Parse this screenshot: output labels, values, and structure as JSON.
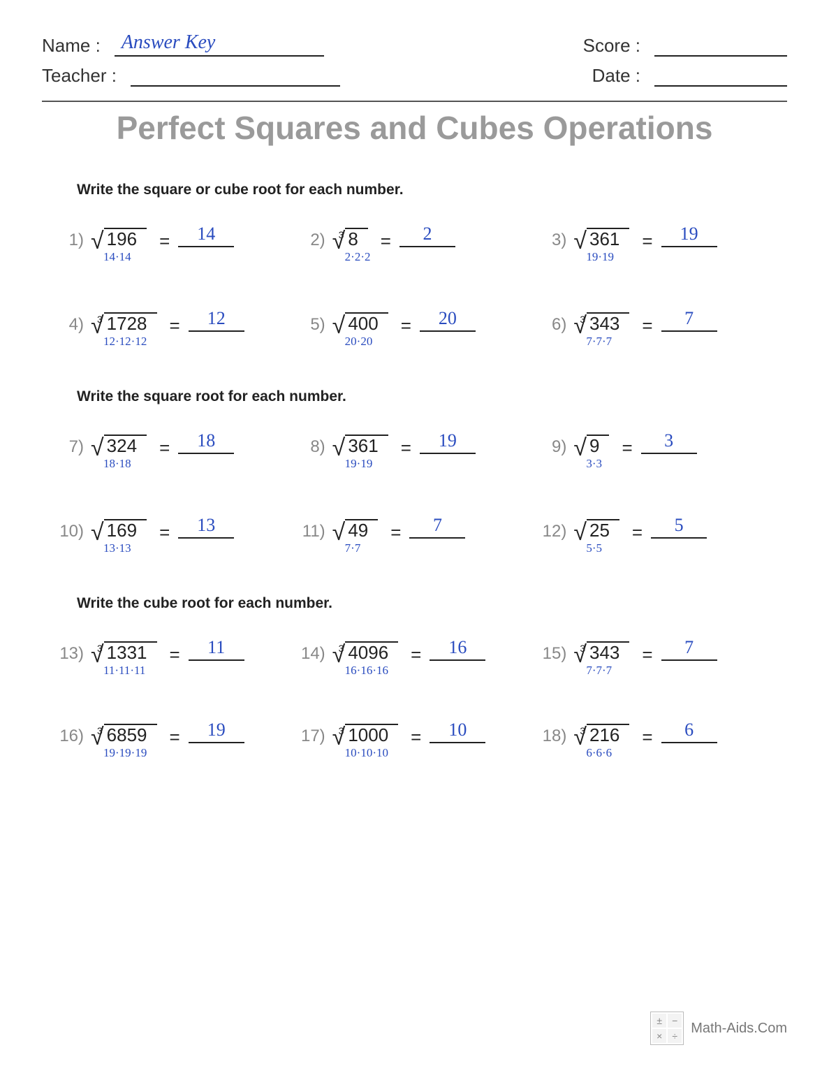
{
  "header": {
    "name_label": "Name :",
    "name_value": "Answer Key",
    "score_label": "Score :",
    "score_value": "",
    "teacher_label": "Teacher :",
    "teacher_value": "",
    "date_label": "Date :",
    "date_value": ""
  },
  "title": "Perfect Squares and Cubes Operations",
  "sections": [
    {
      "instruction": "Write the square or cube root for each number.",
      "problems": [
        {
          "num": "1)",
          "index": "",
          "radicand": "196",
          "work": "14·14",
          "answer": "14"
        },
        {
          "num": "2)",
          "index": "3",
          "radicand": "8",
          "work": "2·2·2",
          "answer": "2"
        },
        {
          "num": "3)",
          "index": "",
          "radicand": "361",
          "work": "19·19",
          "answer": "19"
        },
        {
          "num": "4)",
          "index": "3",
          "radicand": "1728",
          "work": "12·12·12",
          "answer": "12"
        },
        {
          "num": "5)",
          "index": "",
          "radicand": "400",
          "work": "20·20",
          "answer": "20"
        },
        {
          "num": "6)",
          "index": "3",
          "radicand": "343",
          "work": "7·7·7",
          "answer": "7"
        }
      ]
    },
    {
      "instruction": "Write the square root for each number.",
      "problems": [
        {
          "num": "7)",
          "index": "",
          "radicand": "324",
          "work": "18·18",
          "answer": "18"
        },
        {
          "num": "8)",
          "index": "",
          "radicand": "361",
          "work": "19·19",
          "answer": "19"
        },
        {
          "num": "9)",
          "index": "",
          "radicand": "9",
          "work": "3·3",
          "answer": "3"
        },
        {
          "num": "10)",
          "index": "",
          "radicand": "169",
          "work": "13·13",
          "answer": "13"
        },
        {
          "num": "11)",
          "index": "",
          "radicand": "49",
          "work": "7·7",
          "answer": "7"
        },
        {
          "num": "12)",
          "index": "",
          "radicand": "25",
          "work": "5·5",
          "answer": "5"
        }
      ]
    },
    {
      "instruction": "Write the cube root for each number.",
      "problems": [
        {
          "num": "13)",
          "index": "3",
          "radicand": "1331",
          "work": "11·11·11",
          "answer": "11"
        },
        {
          "num": "14)",
          "index": "3",
          "radicand": "4096",
          "work": "16·16·16",
          "answer": "16"
        },
        {
          "num": "15)",
          "index": "3",
          "radicand": "343",
          "work": "7·7·7",
          "answer": "7"
        },
        {
          "num": "16)",
          "index": "3",
          "radicand": "6859",
          "work": "19·19·19",
          "answer": "19"
        },
        {
          "num": "17)",
          "index": "3",
          "radicand": "1000",
          "work": "10·10·10",
          "answer": "10"
        },
        {
          "num": "18)",
          "index": "3",
          "radicand": "216",
          "work": "6·6·6",
          "answer": "6"
        }
      ]
    }
  ],
  "footer": "Math-Aids.Com"
}
